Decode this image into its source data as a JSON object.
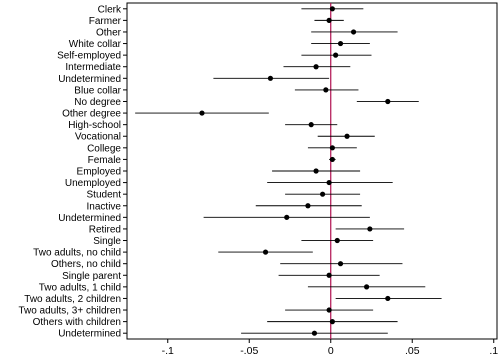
{
  "chart_data": {
    "type": "scatter",
    "title": "",
    "xlabel": "",
    "ylabel": "",
    "xlim": [
      -0.125,
      0.102
    ],
    "x_ticks": [
      -0.1,
      -0.05,
      0,
      0.05,
      0.1
    ],
    "x_tick_labels": [
      "-.1",
      "-.05",
      "0",
      ".05",
      ".1"
    ],
    "reference_line": {
      "x": 0,
      "color": "#b01050"
    },
    "grid": false,
    "marker_color": "#000000",
    "ci_color": "#000000",
    "rows": [
      {
        "label": "Clerk",
        "estimate": 0.001,
        "ci_low": -0.018,
        "ci_high": 0.02
      },
      {
        "label": "Farmer",
        "estimate": -0.001,
        "ci_low": -0.01,
        "ci_high": 0.008
      },
      {
        "label": "Other",
        "estimate": 0.014,
        "ci_low": -0.012,
        "ci_high": 0.041
      },
      {
        "label": "White collar",
        "estimate": 0.006,
        "ci_low": -0.012,
        "ci_high": 0.024
      },
      {
        "label": "Self-employed",
        "estimate": 0.003,
        "ci_low": -0.018,
        "ci_high": 0.025
      },
      {
        "label": "Intermediate",
        "estimate": -0.009,
        "ci_low": -0.029,
        "ci_high": 0.012
      },
      {
        "label": "Undetermined",
        "estimate": -0.037,
        "ci_low": -0.072,
        "ci_high": -0.001
      },
      {
        "label": "Blue collar",
        "estimate": -0.003,
        "ci_low": -0.022,
        "ci_high": 0.017
      },
      {
        "label": "No degree",
        "estimate": 0.035,
        "ci_low": 0.016,
        "ci_high": 0.054
      },
      {
        "label": "Other degree",
        "estimate": -0.079,
        "ci_low": -0.12,
        "ci_high": -0.038
      },
      {
        "label": "High-school",
        "estimate": -0.012,
        "ci_low": -0.028,
        "ci_high": 0.004
      },
      {
        "label": "Vocational",
        "estimate": 0.01,
        "ci_low": -0.008,
        "ci_high": 0.027
      },
      {
        "label": "College",
        "estimate": 0.001,
        "ci_low": -0.014,
        "ci_high": 0.016
      },
      {
        "label": "Female",
        "estimate": 0.001,
        "ci_low": -0.001,
        "ci_high": 0.003
      },
      {
        "label": "Employed",
        "estimate": -0.009,
        "ci_low": -0.036,
        "ci_high": 0.018
      },
      {
        "label": "Unemployed",
        "estimate": -0.001,
        "ci_low": -0.039,
        "ci_high": 0.038
      },
      {
        "label": "Student",
        "estimate": -0.005,
        "ci_low": -0.028,
        "ci_high": 0.018
      },
      {
        "label": "Inactive",
        "estimate": -0.014,
        "ci_low": -0.046,
        "ci_high": 0.019
      },
      {
        "label": "Undetermined",
        "estimate": -0.027,
        "ci_low": -0.078,
        "ci_high": 0.024
      },
      {
        "label": "Retired",
        "estimate": 0.024,
        "ci_low": 0.003,
        "ci_high": 0.045
      },
      {
        "label": "Single",
        "estimate": 0.004,
        "ci_low": -0.018,
        "ci_high": 0.026
      },
      {
        "label": "Two adults, no child",
        "estimate": -0.04,
        "ci_low": -0.069,
        "ci_high": -0.011
      },
      {
        "label": "Others, no child",
        "estimate": 0.006,
        "ci_low": -0.031,
        "ci_high": 0.044
      },
      {
        "label": "Single parent",
        "estimate": -0.001,
        "ci_low": -0.032,
        "ci_high": 0.03
      },
      {
        "label": "Two adults, 1 child",
        "estimate": 0.022,
        "ci_low": -0.014,
        "ci_high": 0.058
      },
      {
        "label": "Two adults, 2 children",
        "estimate": 0.035,
        "ci_low": 0.003,
        "ci_high": 0.068
      },
      {
        "label": "Two adults, 3+ children",
        "estimate": -0.001,
        "ci_low": -0.028,
        "ci_high": 0.026
      },
      {
        "label": "Others with children",
        "estimate": 0.001,
        "ci_low": -0.039,
        "ci_high": 0.041
      },
      {
        "label": "Undetermined",
        "estimate": -0.01,
        "ci_low": -0.055,
        "ci_high": 0.035
      }
    ]
  }
}
